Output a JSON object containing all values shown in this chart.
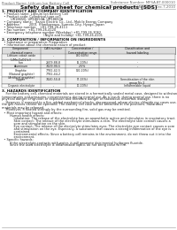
{
  "bg_color": "#ffffff",
  "header_top_left": "Product Name: Lithium Ion Battery Cell",
  "header_top_right": "Substance Number: MPSA-BT-000010\nEstablishment / Revision: Dec.7,2010",
  "main_title": "Safety data sheet for chemical products (SDS)",
  "section1_title": "1. PRODUCT AND COMPANY IDENTIFICATION",
  "section1_lines": [
    "  • Product name: Lithium Ion Battery Cell",
    "  • Product code: Cylindrical-type cell",
    "         UR18650J, UR18650A, UR18650A",
    "  • Company name:   Sanyo Electric Co., Ltd., Mobile Energy Company",
    "  • Address:         2001  Kamikamazu, Sumoto-City, Hyogo, Japan",
    "  • Telephone number:   +81-799-26-4111",
    "  • Fax number:  +81-799-26-4120",
    "  • Emergency telephone number (Weekday) +81-799-26-3062",
    "                                          (Night and holiday) +81-799-26-4101"
  ],
  "section2_title": "2. COMPOSITION / INFORMATION ON INGREDIENTS",
  "section2_sub": "  • Substance or preparation: Preparation",
  "section2_sub2": "  • Information about the chemical nature of product:",
  "table_headers": [
    "Component/\nchemical name",
    "CAS number",
    "Concentration /\nConcentration range",
    "Classification and\nhazard labeling"
  ],
  "table_rows": [
    [
      "Lithium cobalt oxide\n(LiMn-CoO2(s))",
      "-",
      "(30-60%)",
      ""
    ],
    [
      "Iron",
      "2609-88-8",
      "(6-20%)",
      "-"
    ],
    [
      "Aluminum",
      "7429-90-5",
      "2.5%",
      "-"
    ],
    [
      "Graphite\n(Natural graphite)\n(Artificial graphite)",
      "7782-42-5\n7782-44-2",
      "(10-20%)",
      ""
    ],
    [
      "Copper",
      "7440-50-8",
      "(7-15%)",
      "Sensitisation of the skin\ngroup No.2"
    ],
    [
      "Organic electrolyte",
      "-",
      "(0-20%)",
      "Inflammable liquid"
    ]
  ],
  "section3_title": "3. HAZARDS IDENTIFICATION",
  "section3_para": [
    "    For the battery cell, chemical materials are stored in a hermetically sealed metal case, designed to withstand",
    "temperatures and pressures-concentrations during normal use. As a result, during normal use, there is no",
    "physical danger of ignition or explosion and therefore danger of hazardous materials leakage.",
    "    However, if exposed to a fire, added mechanical shocks, decomposed, where electro chloride my cases use,",
    "the gas moves cannot be operated. The battery cell case will be breached at the positions. Hazardous",
    "materials may be released.",
    "    Moreover, if heated strongly by the surrounding fire, solid gas may be emitted."
  ],
  "section3_bullet1": "  • Most important hazard and effects:",
  "section3_bullet1b": "        Human health effects:",
  "section3_health": [
    "            Inhalation: The release of the electrolyte has an anaesthetic action and stimulates in respiratory tract.",
    "            Skin contact: The release of the electrolyte stimulates a skin. The electrolyte skin contact causes a",
    "            sore and stimulation on the skin.",
    "            Eye contact: The release of the electrolyte stimulates eyes. The electrolyte eye contact causes a sore",
    "            and stimulation on the eye. Especially, a substance that causes a strong inflammation of the eye is",
    "            contained.",
    "            Environmental effects: Since a battery cell remains in the environment, do not throw out it into the",
    "            environment."
  ],
  "section3_bullet2": "  • Specific hazards:",
  "section3_specific": [
    "        If the electrolyte contacts with water, it will generate detrimental hydrogen fluoride.",
    "        Since the used electrolyte is inflammable liquid, do not bring close to fire."
  ]
}
